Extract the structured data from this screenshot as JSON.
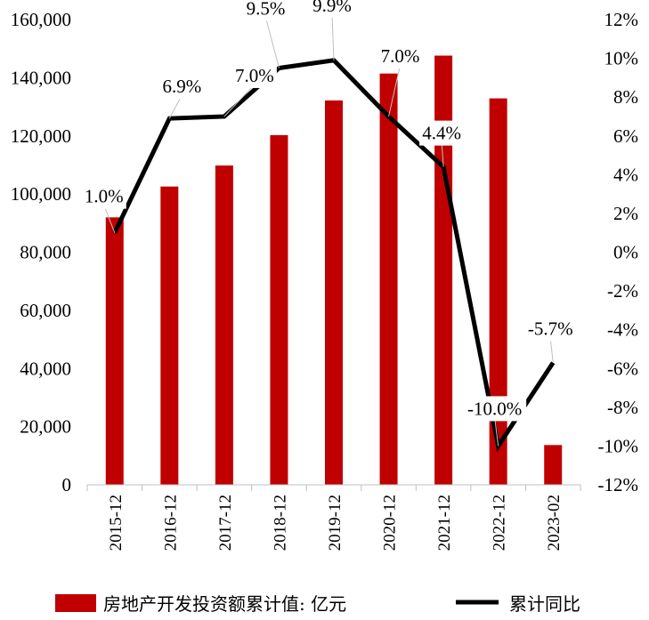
{
  "chart_data": {
    "type": "bar+line",
    "title": "",
    "categories": [
      "2015-12",
      "2016-12",
      "2017-12",
      "2018-12",
      "2019-12",
      "2020-12",
      "2021-12",
      "2022-12",
      "2023-02"
    ],
    "series": [
      {
        "name": "房地产开发投资额累计值: 亿元",
        "type": "bar",
        "axis": "left",
        "color": "#C00000",
        "values": [
          91980,
          102581,
          109799,
          120264,
          132194,
          141443,
          147602,
          132895,
          13669
        ]
      },
      {
        "name": "累计同比",
        "type": "line",
        "axis": "right",
        "color": "#000000",
        "values": [
          1.0,
          6.9,
          7.0,
          9.5,
          9.9,
          7.0,
          4.4,
          -10.0,
          -5.7
        ],
        "labels": [
          "1.0%",
          "6.9%",
          "7.0%",
          "9.5%",
          "9.9%",
          "7.0%",
          "4.4%",
          "-10.0%",
          "-5.7%"
        ]
      }
    ],
    "left_axis": {
      "ylim": [
        0,
        160000
      ],
      "ticks": [
        0,
        20000,
        40000,
        60000,
        80000,
        100000,
        120000,
        140000,
        160000
      ],
      "tick_labels": [
        "0",
        "20,000",
        "40,000",
        "60,000",
        "80,000",
        "100,000",
        "120,000",
        "140,000",
        "160,000"
      ]
    },
    "right_axis": {
      "ylim": [
        -12,
        12
      ],
      "ticks": [
        -12,
        -10,
        -8,
        -6,
        -4,
        -2,
        0,
        2,
        4,
        6,
        8,
        10,
        12
      ],
      "tick_labels": [
        "-12%",
        "-10%",
        "-8%",
        "-6%",
        "-4%",
        "-2%",
        "0%",
        "2%",
        "4%",
        "6%",
        "8%",
        "10%",
        "12%"
      ]
    },
    "grid": false,
    "legend": "bottom"
  }
}
